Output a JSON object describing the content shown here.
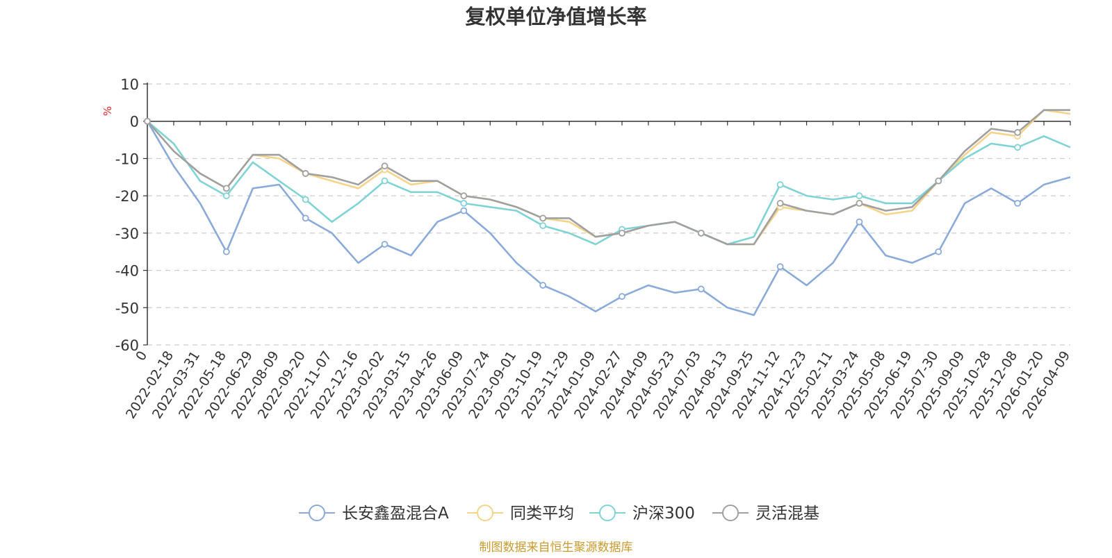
{
  "chart_data": {
    "type": "line",
    "title": "复权单位净值增长率",
    "ylabel": "%",
    "xlabel": "",
    "ylim": [
      -60,
      10
    ],
    "yticks": [
      10,
      0,
      -10,
      -20,
      -30,
      -40,
      -50,
      -60
    ],
    "categories": [
      "0",
      "2022-02-18",
      "2022-03-31",
      "2022-05-18",
      "2022-06-29",
      "2022-08-09",
      "2022-09-20",
      "2022-11-07",
      "2022-12-16",
      "2023-02-02",
      "2023-03-15",
      "2023-04-26",
      "2023-06-09",
      "2023-07-24",
      "2023-09-01",
      "2023-10-19",
      "2023-11-29",
      "2024-01-09",
      "2024-02-27",
      "2024-04-09",
      "2024-05-23",
      "2024-07-03",
      "2024-08-13",
      "2024-09-25",
      "2024-11-12",
      "2024-12-23",
      "2025-02-11",
      "2025-03-24",
      "2025-05-08",
      "2025-06-19",
      "2025-07-30",
      "2025-09-09",
      "2025-10-28",
      "2025-12-08",
      "2026-01-20",
      "2026-04-09"
    ],
    "grid": true,
    "legend_position": "bottom",
    "series": [
      {
        "name": "长安鑫盈混合A",
        "color": "#8aaad9",
        "values": [
          0,
          -12,
          -22,
          -35,
          -18,
          -17,
          -26,
          -30,
          -38,
          -33,
          -36,
          -27,
          -24,
          -30,
          -38,
          -44,
          -47,
          -51,
          -47,
          -44,
          -46,
          -45,
          -50,
          -52,
          -39,
          -44,
          -38,
          -27,
          -36,
          -38,
          -35,
          -22,
          -18,
          -22,
          -17,
          -15
        ]
      },
      {
        "name": "同类平均",
        "color": "#f5d48a",
        "values": [
          0,
          -8,
          -14,
          -18,
          -9,
          -10,
          -14,
          -16,
          -18,
          -13,
          -17,
          -16,
          -20,
          -21,
          -23,
          -26,
          -27,
          -31,
          -30,
          -28,
          -27,
          -30,
          -33,
          -33,
          -23,
          -24,
          -25,
          -22,
          -25,
          -24,
          -16,
          -9,
          -3,
          -4,
          3,
          2
        ]
      },
      {
        "name": "沪深300",
        "color": "#7fd3d4",
        "values": [
          0,
          -6,
          -16,
          -20,
          -11,
          -16,
          -21,
          -27,
          -22,
          -16,
          -19,
          -19,
          -22,
          -23,
          -24,
          -28,
          -30,
          -33,
          -29,
          -28,
          -27,
          -30,
          -33,
          -31,
          -17,
          -20,
          -21,
          -20,
          -22,
          -22,
          -16,
          -10,
          -6,
          -7,
          -4,
          -7
        ]
      },
      {
        "name": "灵活混基",
        "color": "#a0a0a0",
        "values": [
          0,
          -8,
          -14,
          -18,
          -9,
          -9,
          -14,
          -15,
          -17,
          -12,
          -16,
          -16,
          -20,
          -21,
          -23,
          -26,
          -26,
          -31,
          -30,
          -28,
          -27,
          -30,
          -33,
          -33,
          -22,
          -24,
          -25,
          -22,
          -24,
          -23,
          -16,
          -8,
          -2,
          -3,
          3,
          3
        ]
      }
    ]
  },
  "axis_unit_color": "#e02020",
  "footer": {
    "source_text": "制图数据来自恒生聚源数据库",
    "color": "#c99a2e"
  }
}
